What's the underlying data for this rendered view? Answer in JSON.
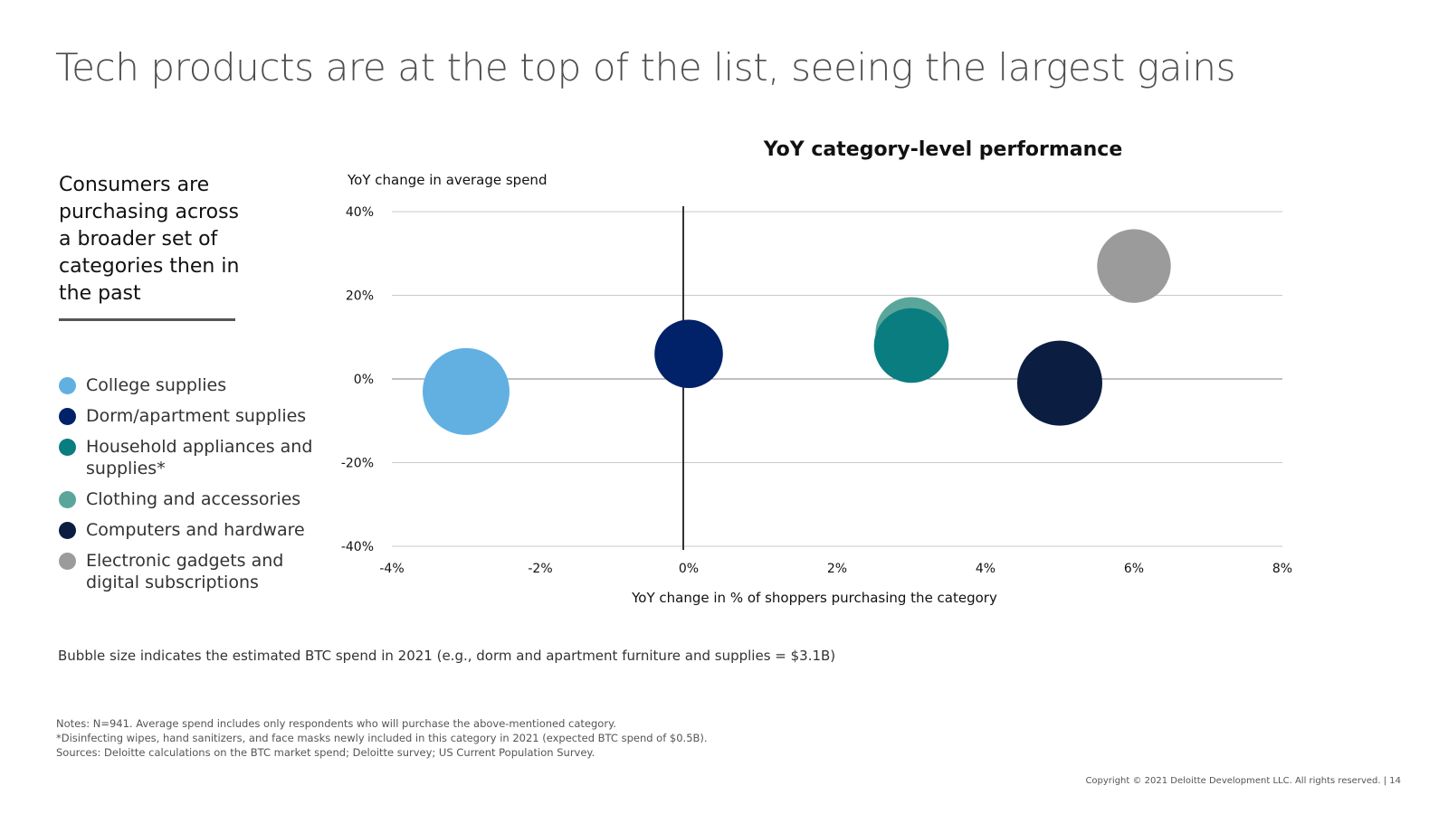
{
  "title": "Tech products are at the top of the list, seeing the largest gains",
  "takeaway": "Consumers are purchasing across a broader set of categories then in the past",
  "legend": [
    {
      "label": "College supplies",
      "color": "#62B0E2"
    },
    {
      "label": "Dorm/apartment supplies",
      "color": "#012169"
    },
    {
      "label": "Household appliances and supplies*",
      "color": "#0A7D80"
    },
    {
      "label": "Clothing and accessories",
      "color": "#5BA69A"
    },
    {
      "label": "Computers and hardware",
      "color": "#0B1E42"
    },
    {
      "label": "Electronic gadgets and digital subscriptions",
      "color": "#9B9B9B"
    }
  ],
  "chart_data": {
    "type": "bubble",
    "title": "YoY category-level performance",
    "ylabel": "YoY change in average spend",
    "xlabel": "YoY change in % of shoppers purchasing the category",
    "xlim": [
      -4,
      8
    ],
    "ylim": [
      -40,
      40
    ],
    "x_ticks": [
      -4,
      -2,
      0,
      2,
      4,
      6,
      8
    ],
    "y_ticks": [
      40,
      20,
      0,
      -20,
      -40
    ],
    "x_tick_labels": [
      "-4%",
      "-2%",
      "0%",
      "2%",
      "4%",
      "6%",
      "8%"
    ],
    "y_tick_labels": [
      "40%",
      "20%",
      "0%",
      "-20%",
      "-40%"
    ],
    "series": [
      {
        "name": "College supplies",
        "x": -3.0,
        "y": -3,
        "size": 5.0,
        "color": "#62B0E2"
      },
      {
        "name": "Dorm/apartment supplies",
        "x": 0.0,
        "y": 6,
        "size": 3.1,
        "color": "#012169"
      },
      {
        "name": "Clothing and accessories",
        "x": 3.0,
        "y": 11,
        "size": 3.4,
        "color": "#5BA69A"
      },
      {
        "name": "Household appliances and supplies*",
        "x": 3.0,
        "y": 8,
        "size": 3.7,
        "color": "#0A7D80"
      },
      {
        "name": "Computers and hardware",
        "x": 5.0,
        "y": -1,
        "size": 4.8,
        "color": "#0B1E42"
      },
      {
        "name": "Electronic gadgets and digital subscriptions",
        "x": 6.0,
        "y": 27,
        "size": 3.6,
        "color": "#9B9B9B"
      }
    ]
  },
  "bubble_note": "Bubble size indicates the estimated BTC spend in 2021 (e.g., dorm and apartment furniture and supplies = $3.1B)",
  "notes": [
    "Notes: N=941. Average spend includes only respondents who will purchase the above-mentioned category.",
    "*Disinfecting wipes, hand sanitizers, and face masks newly included in this category in 2021 (expected BTC spend of $0.5B).",
    "Sources: Deloitte calculations on the BTC market spend; Deloitte survey; US Current Population Survey."
  ],
  "copyright": "Copyright © 2021 Deloitte Development LLC. All rights reserved.  |   14"
}
